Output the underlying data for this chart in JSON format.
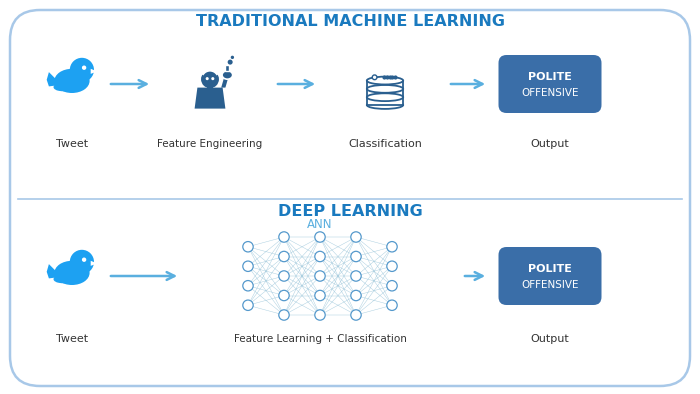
{
  "bg_color": "#ffffff",
  "outer_border_color": "#a8c8e8",
  "divider_color": "#a8c8e8",
  "title_top": "TRADITIONAL MACHINE LEARNING",
  "title_bottom": "DEEP LEARNING",
  "title_color": "#1a7abf",
  "arrow_color": "#5aafdf",
  "twitter_color": "#1da1f2",
  "icon_color_dark": "#2a5f8f",
  "icon_color_light": "#3a7abf",
  "ann_label": "ANN",
  "ann_color": "#5aafdf",
  "output_box_color": "#3a6ea8",
  "output_text_color": "#ffffff",
  "output_text_line1": "POLITE",
  "output_text_line2": "OFFENSIVE",
  "label_color": "#333333",
  "node_color": "#ffffff",
  "node_edge_color": "#5599cc",
  "node_line_color": "#8abcd4",
  "figw": 7.0,
  "figh": 3.94,
  "dpi": 100
}
